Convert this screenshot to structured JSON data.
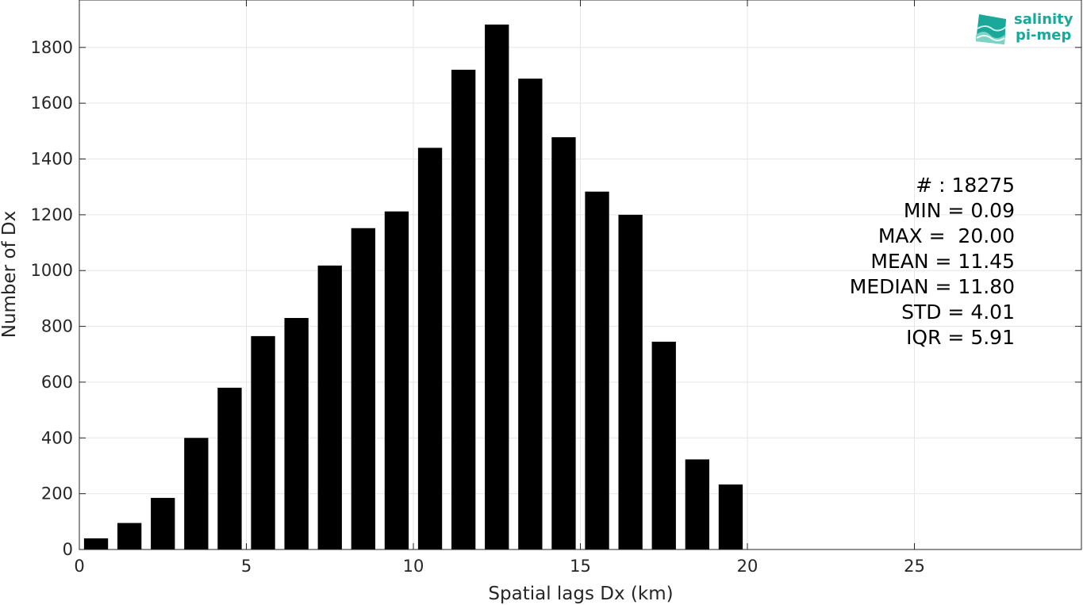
{
  "chart_data": {
    "type": "bar",
    "title": "",
    "xlabel": "Spatial lags Dx (km)",
    "ylabel": "Number of Dx",
    "xlim": [
      0,
      30
    ],
    "ylim": [
      0,
      1970
    ],
    "xticks": [
      0,
      5,
      10,
      15,
      20,
      25
    ],
    "yticks": [
      0,
      200,
      400,
      600,
      800,
      1000,
      1200,
      1400,
      1600,
      1800
    ],
    "grid": true,
    "bar_color": "#000000",
    "x": [
      0.5,
      1.5,
      2.5,
      3.5,
      4.5,
      5.5,
      6.5,
      7.5,
      8.5,
      9.5,
      10.5,
      11.5,
      12.5,
      13.5,
      14.5,
      15.5,
      16.5,
      17.5,
      18.5,
      19.5
    ],
    "values": [
      40,
      95,
      185,
      400,
      580,
      765,
      830,
      1018,
      1152,
      1212,
      1440,
      1720,
      1882,
      1688,
      1478,
      1283,
      1200,
      745,
      323,
      233
    ]
  },
  "stats": {
    "count": "# : 18275",
    "min": "MIN = 0.09",
    "max": "MAX =  20.00",
    "mean": "MEAN = 11.45",
    "median": "MEDIAN = 11.80",
    "std": "STD = 4.01",
    "iqr": "IQR = 5.91"
  },
  "logo": {
    "line1": "salinity",
    "line2": "pi-mep",
    "color": "#1aa89a"
  }
}
